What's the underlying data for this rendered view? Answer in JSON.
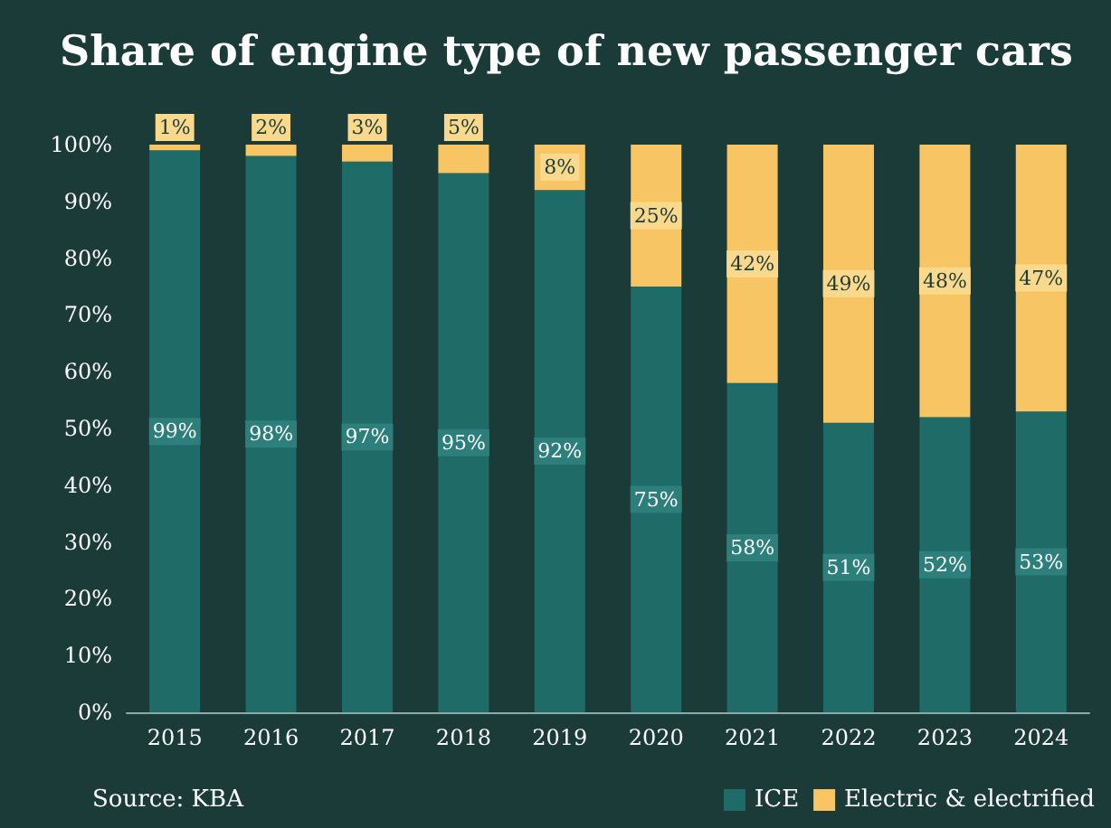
{
  "chart_data": {
    "type": "bar",
    "title": "Share of engine type of new passenger cars",
    "stacked": true,
    "categories": [
      "2015",
      "2016",
      "2017",
      "2018",
      "2019",
      "2020",
      "2021",
      "2022",
      "2023",
      "2024"
    ],
    "series": [
      {
        "name": "ICE",
        "color": "#1f6b68",
        "values": [
          99,
          98,
          97,
          95,
          92,
          75,
          58,
          51,
          52,
          53
        ],
        "value_labels": [
          "99%",
          "98%",
          "97%",
          "95%",
          "92%",
          "75%",
          "58%",
          "51%",
          "52%",
          "53%"
        ]
      },
      {
        "name": "Electric & electrified",
        "color": "#f7c564",
        "values": [
          1,
          2,
          3,
          5,
          8,
          25,
          42,
          49,
          48,
          47
        ],
        "value_labels": [
          "1%",
          "2%",
          "3%",
          "5%",
          "8%",
          "25%",
          "42%",
          "49%",
          "48%",
          "47%"
        ]
      }
    ],
    "ylim": [
      0,
      100
    ],
    "yticks": [
      {
        "value": 0,
        "label": "0%"
      },
      {
        "value": 10,
        "label": "10%"
      },
      {
        "value": 20,
        "label": "20%"
      },
      {
        "value": 30,
        "label": "30%"
      },
      {
        "value": 40,
        "label": "40%"
      },
      {
        "value": 50,
        "label": "50%"
      },
      {
        "value": 60,
        "label": "60%"
      },
      {
        "value": 70,
        "label": "70%"
      },
      {
        "value": 80,
        "label": "80%"
      },
      {
        "value": 90,
        "label": "90%"
      },
      {
        "value": 100,
        "label": "100%"
      }
    ],
    "grid": false,
    "legend": "bottom right",
    "annotations": [
      "Source: KBA"
    ]
  }
}
